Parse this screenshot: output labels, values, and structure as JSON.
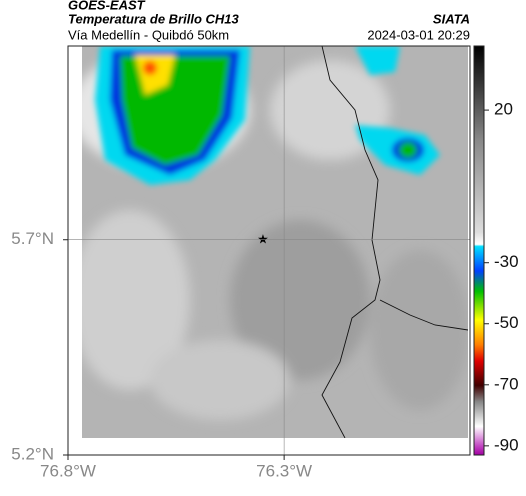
{
  "header": {
    "title": "GOES-EAST",
    "subtitle": "Temperatura de Brillo CH13",
    "route": "Vía Medellín - Quibdó 50km",
    "source": "SIATA",
    "timestamp": "2024-03-01 20:29"
  },
  "map": {
    "xlim": [
      -76.8,
      -75.87
    ],
    "ylim": [
      5.2,
      6.15
    ],
    "xticks": [
      {
        "value": -76.8,
        "label": "76.8°W"
      },
      {
        "value": -76.3,
        "label": "76.3°W"
      }
    ],
    "yticks": [
      {
        "value": 5.2,
        "label": "5.2°N"
      },
      {
        "value": 5.7,
        "label": "5.7°N"
      }
    ],
    "grid": true
  },
  "colorbar": {
    "lim": [
      41,
      -93
    ],
    "ticks": [
      20,
      -30,
      -50,
      -70,
      -90
    ]
  }
}
